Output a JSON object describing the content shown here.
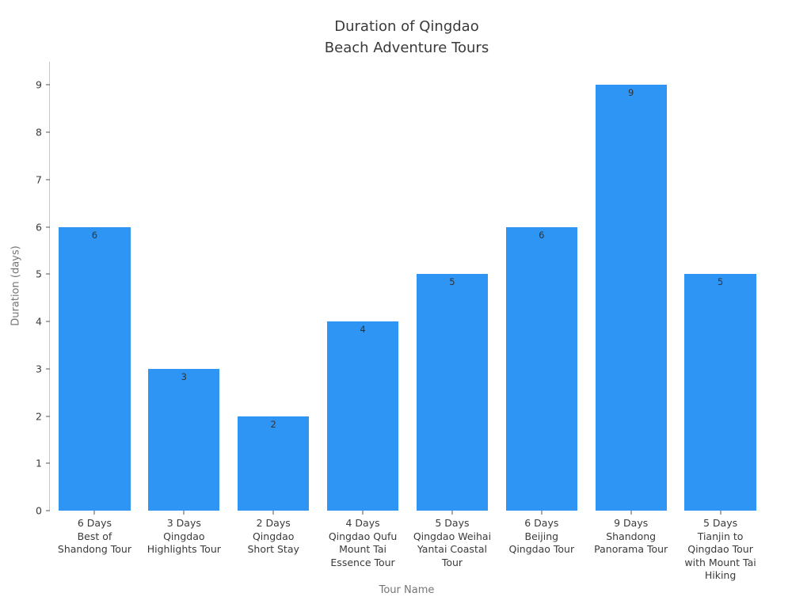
{
  "chart_data": {
    "type": "bar",
    "title": "Duration of Qingdao\nBeach Adventure Tours",
    "xlabel": "Tour Name",
    "ylabel": "Duration (days)",
    "categories": [
      "6 Days\nBest of\nShandong Tour",
      "3 Days\nQingdao\nHighlights Tour",
      "2 Days\nQingdao\nShort Stay",
      "4 Days\nQingdao Qufu\nMount Tai\nEssence Tour",
      "5 Days\nQingdao Weihai\nYantai Coastal\nTour",
      "6 Days\nBeijing\nQingdao Tour",
      "9 Days\nShandong\nPanorama Tour",
      "5 Days\nTianjin to\nQingdao Tour\nwith Mount Tai\nHiking"
    ],
    "values": [
      6,
      3,
      2,
      4,
      5,
      6,
      9,
      5
    ],
    "value_labels": [
      "6",
      "3",
      "2",
      "4",
      "5",
      "6",
      "9",
      "5"
    ],
    "yticks": [
      0,
      1,
      2,
      3,
      4,
      5,
      6,
      7,
      8,
      9
    ],
    "ylim": [
      0,
      9.49
    ],
    "grid": false,
    "legend": false,
    "bar_color": "#2e95f4",
    "bar_width_fraction": 0.8,
    "value_label_color": "#333333"
  }
}
